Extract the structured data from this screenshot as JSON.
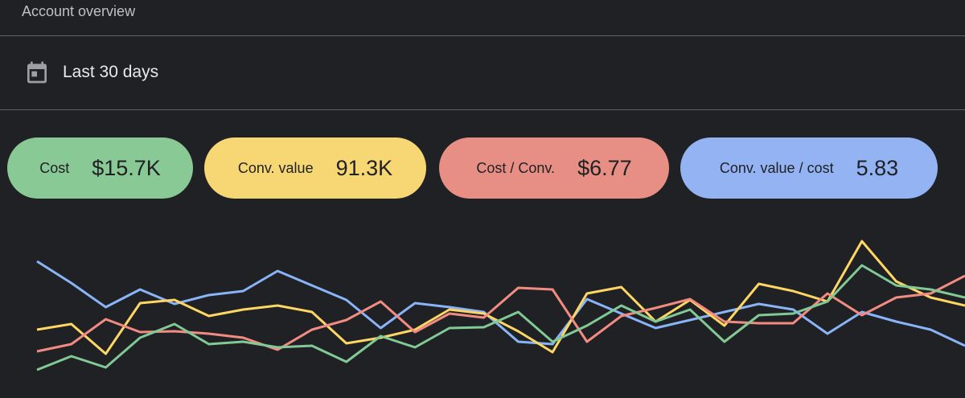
{
  "header": {
    "title": "Account overview"
  },
  "date_range": {
    "label": "Last 30 days"
  },
  "metrics": [
    {
      "label": "Cost",
      "value": "$15.7K",
      "color": "#88c996"
    },
    {
      "label": "Conv. value",
      "value": "91.3K",
      "color": "#f6d774"
    },
    {
      "label": "Cost / Conv.",
      "value": "$6.77",
      "color": "#e78f85"
    },
    {
      "label": "Conv. value / cost",
      "value": "5.83",
      "color": "#93b3f2"
    }
  ],
  "chart_data": {
    "type": "line",
    "ylim": [
      5,
      215
    ],
    "series": [
      {
        "color": "#8ab4f8",
        "values": [
          175,
          148,
          118,
          140,
          122,
          133,
          138,
          163,
          145,
          127,
          92,
          123,
          118,
          112,
          75,
          72,
          128,
          110,
          92,
          102,
          112,
          122,
          115,
          85,
          112,
          100,
          90,
          70
        ]
      },
      {
        "color": "#fdd663",
        "values": [
          90,
          97,
          60,
          123,
          127,
          107,
          115,
          120,
          112,
          73,
          80,
          90,
          115,
          110,
          88,
          62,
          135,
          143,
          100,
          127,
          95,
          147,
          138,
          125,
          200,
          150,
          130,
          120
        ]
      },
      {
        "color": "#f28b82",
        "values": [
          63,
          72,
          103,
          87,
          88,
          85,
          80,
          65,
          90,
          102,
          125,
          87,
          110,
          105,
          142,
          140,
          75,
          107,
          117,
          128,
          100,
          98,
          98,
          135,
          108,
          130,
          135,
          157
        ]
      },
      {
        "color": "#81c995",
        "values": [
          40,
          57,
          43,
          80,
          97,
          72,
          75,
          68,
          70,
          50,
          82,
          68,
          92,
          93,
          112,
          75,
          95,
          120,
          100,
          115,
          75,
          108,
          110,
          125,
          170,
          145,
          140,
          130
        ]
      }
    ]
  }
}
